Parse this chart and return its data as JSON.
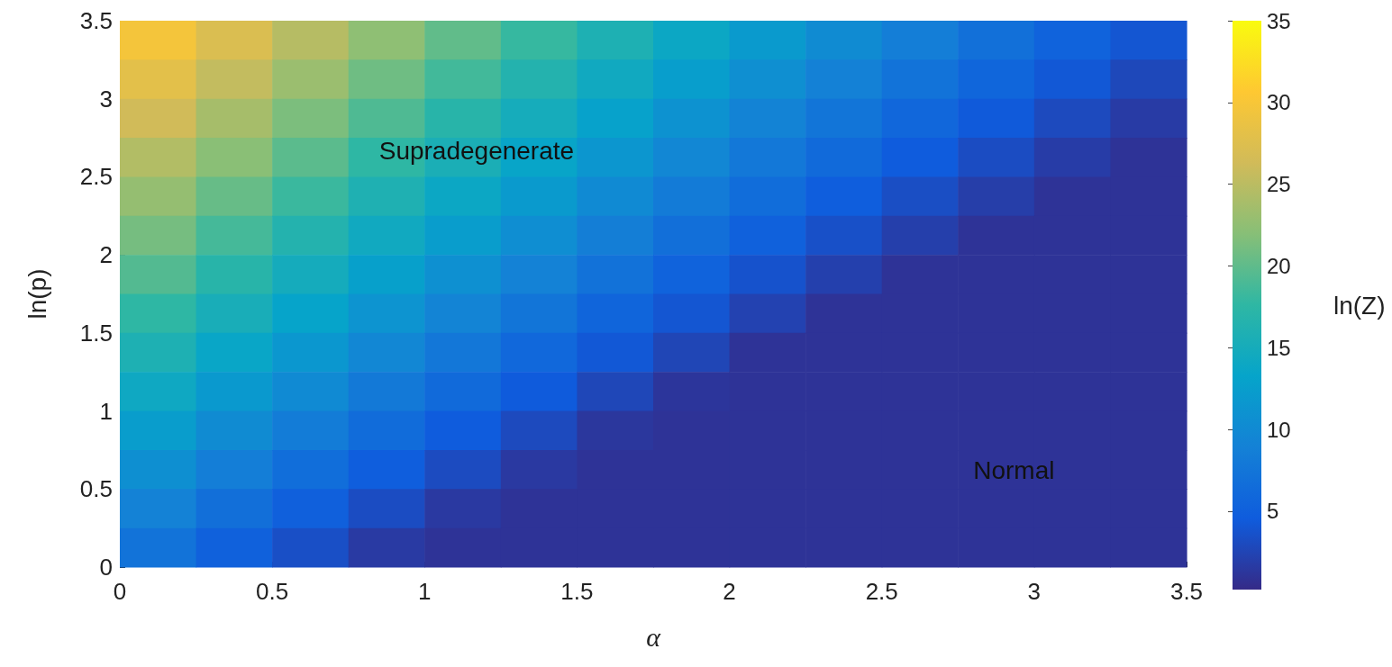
{
  "chart_data": {
    "type": "heatmap",
    "xlabel": "α",
    "ylabel": "ln(p)",
    "clabel": "ln(Z)",
    "xlim": [
      0,
      3.5
    ],
    "xticks": [
      0,
      0.5,
      1,
      1.5,
      2,
      2.5,
      3,
      3.5
    ],
    "ylim": [
      0,
      3.5
    ],
    "yticks": [
      0,
      0.5,
      1,
      1.5,
      2,
      2.5,
      3,
      3.5
    ],
    "clim": [
      0.2,
      35
    ],
    "cticks": [
      5,
      10,
      15,
      20,
      25,
      30,
      35
    ],
    "x": [
      0.125,
      0.375,
      0.625,
      0.875,
      1.125,
      1.375,
      1.625,
      1.875,
      2.125,
      2.375,
      2.625,
      2.875,
      3.125,
      3.375
    ],
    "y": [
      3.375,
      3.125,
      2.875,
      2.625,
      2.375,
      2.125,
      1.875,
      1.625,
      1.375,
      1.125,
      0.875,
      0.625,
      0.375,
      0.125
    ],
    "cells": [
      [
        29.7,
        27.2,
        24.7,
        22.4,
        20.1,
        18.0,
        15.9,
        13.9,
        12.0,
        10.2,
        8.5,
        6.9,
        5.4,
        4.0
      ],
      [
        28.0,
        25.5,
        23.1,
        20.8,
        18.6,
        16.5,
        14.4,
        12.5,
        10.6,
        8.9,
        7.2,
        5.7,
        4.2,
        2.8
      ],
      [
        26.3,
        23.8,
        21.4,
        19.2,
        17.0,
        15.0,
        13.0,
        11.0,
        9.2,
        7.5,
        5.9,
        4.4,
        3.0,
        1.7
      ],
      [
        24.5,
        22.1,
        19.8,
        17.6,
        15.5,
        13.5,
        11.5,
        9.6,
        7.9,
        6.2,
        4.6,
        3.2,
        1.8,
        1.0
      ],
      [
        22.8,
        20.4,
        18.2,
        16.0,
        13.9,
        12.0,
        10.0,
        8.2,
        6.5,
        4.8,
        3.3,
        1.9,
        1.0,
        1.0
      ],
      [
        21.1,
        18.7,
        16.5,
        14.4,
        12.4,
        10.5,
        8.6,
        6.8,
        5.1,
        3.5,
        2.0,
        1.0,
        1.0,
        1.0
      ],
      [
        19.4,
        17.0,
        14.9,
        12.8,
        10.8,
        9.0,
        7.1,
        5.4,
        3.7,
        2.1,
        1.0,
        1.0,
        1.0,
        1.0
      ],
      [
        17.6,
        15.3,
        13.3,
        11.2,
        9.3,
        7.5,
        5.6,
        4.0,
        2.3,
        1.0,
        1.0,
        1.0,
        1.0,
        1.0
      ],
      [
        15.9,
        13.6,
        11.6,
        9.6,
        7.7,
        6.0,
        4.2,
        2.6,
        1.0,
        1.0,
        1.0,
        1.0,
        1.0,
        1.0
      ],
      [
        14.2,
        11.9,
        10.0,
        8.0,
        6.2,
        4.5,
        2.7,
        1.2,
        1.0,
        1.0,
        1.0,
        1.0,
        1.0,
        1.0
      ],
      [
        12.4,
        10.2,
        8.3,
        6.4,
        4.6,
        3.0,
        1.3,
        1.0,
        1.0,
        1.0,
        1.0,
        1.0,
        1.0,
        1.0
      ],
      [
        10.7,
        8.5,
        6.7,
        4.8,
        3.1,
        1.5,
        1.0,
        1.0,
        1.0,
        1.0,
        1.0,
        1.0,
        1.0,
        1.0
      ],
      [
        9.0,
        6.8,
        5.0,
        3.2,
        1.5,
        1.0,
        1.0,
        1.0,
        1.0,
        1.0,
        1.0,
        1.0,
        1.0,
        1.0
      ],
      [
        7.3,
        5.1,
        3.4,
        1.6,
        1.0,
        1.0,
        1.0,
        1.0,
        1.0,
        1.0,
        1.0,
        1.0,
        1.0,
        1.0
      ]
    ],
    "annotations": [
      "Supradegenerate",
      "Normal"
    ]
  }
}
